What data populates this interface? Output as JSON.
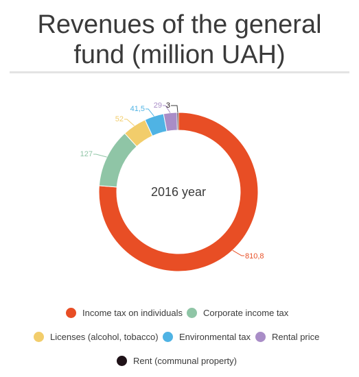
{
  "chart_data": {
    "type": "pie",
    "variant": "donut",
    "title": "Revenues of the general fund (million UAH)",
    "title_lines": [
      "Revenues of the general",
      "fund (million UAH)"
    ],
    "center_label": "2016 year",
    "series": [
      {
        "name": "Income tax on individuals",
        "value": 810.8,
        "label": "810,8",
        "color": "#e84e25"
      },
      {
        "name": "Corporate income tax",
        "value": 127,
        "label": "127",
        "color": "#8fc5a6"
      },
      {
        "name": "Licenses (alcohol, tobacco)",
        "value": 52,
        "label": "52",
        "color": "#f2cd6b"
      },
      {
        "name": "Environmental tax",
        "value": 41.5,
        "label": "41,5",
        "color": "#4fb3e4"
      },
      {
        "name": "Rental price",
        "value": 29,
        "label": "29",
        "color": "#a98dc7"
      },
      {
        "name": "Rent (communal property)",
        "value": 3,
        "label": "3",
        "color": "#1f1218"
      }
    ],
    "legend": [
      [
        "Income tax on individuals",
        "Corporate income tax"
      ],
      [
        "Licenses (alcohol, tobacco)",
        "Environmental tax",
        "Rental price"
      ],
      [
        "Rent (communal property)"
      ]
    ],
    "legend_position": "bottom"
  }
}
